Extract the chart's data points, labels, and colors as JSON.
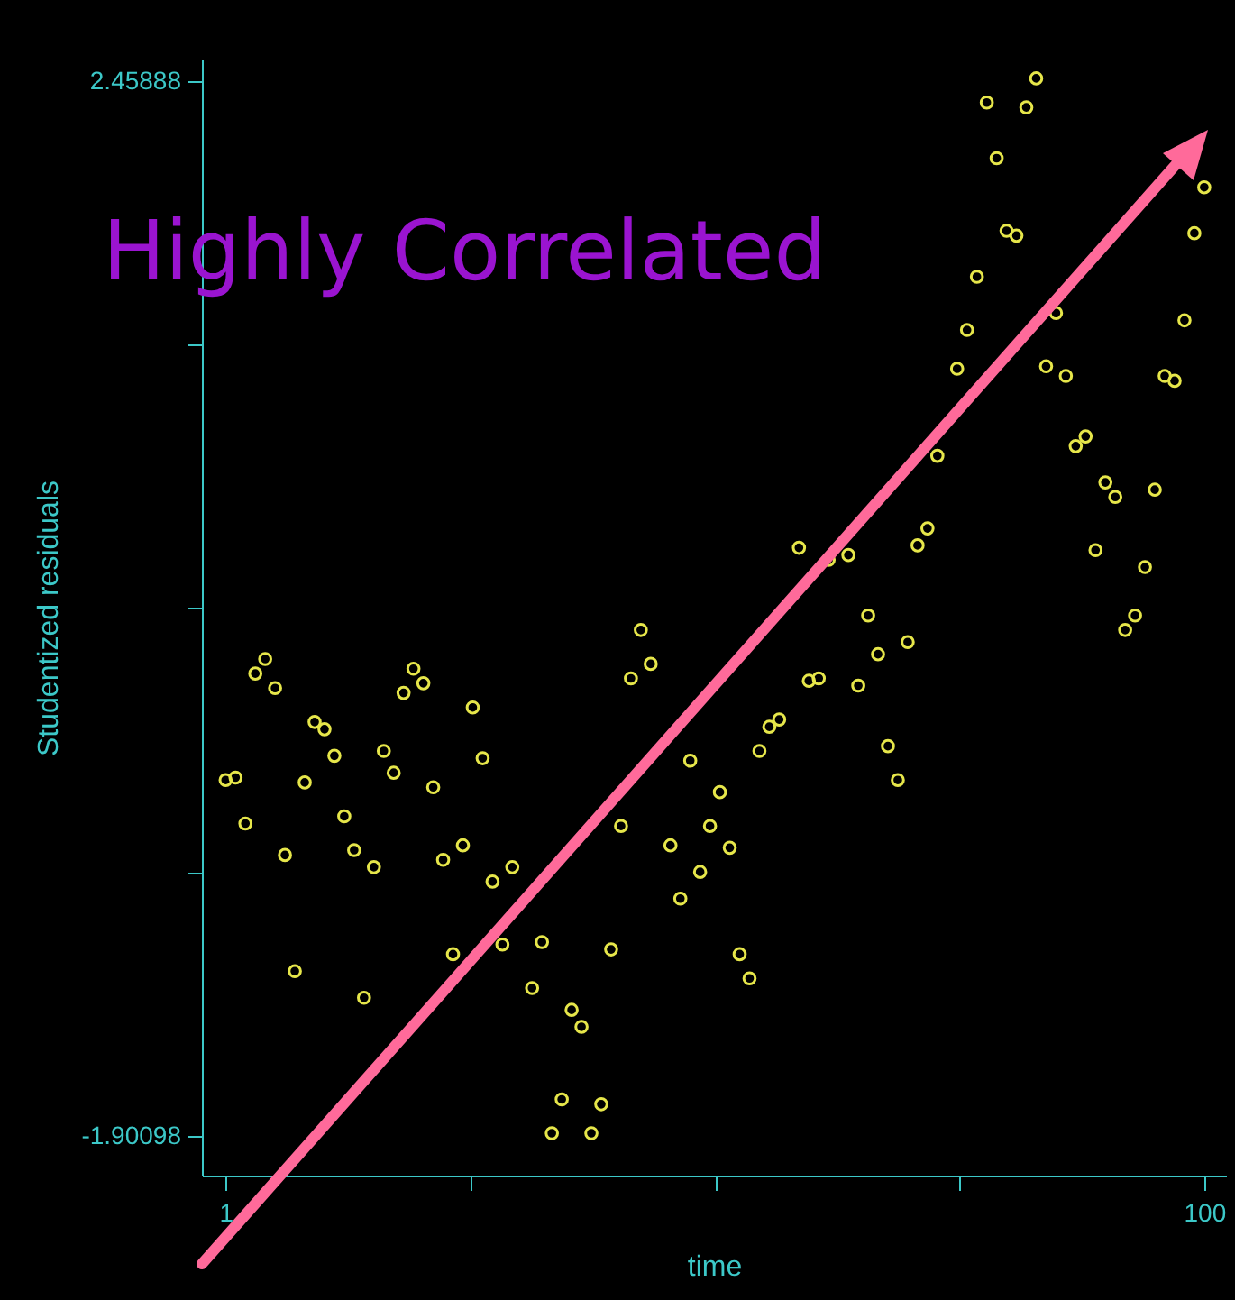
{
  "chart_data": {
    "type": "scatter",
    "xlabel": "time",
    "ylabel": "Studentized residuals",
    "annotations": [
      "Highly Correlated"
    ],
    "xlim": [
      -1.4,
      102.2
    ],
    "xticks": [
      1,
      {
        "value": 25.75,
        "label": null
      },
      {
        "value": 50.5,
        "label": null
      },
      {
        "value": 75.25,
        "label": null
      },
      100
    ],
    "ylim": [
      -2.065,
      2.548
    ],
    "yticks": [
      -1.90098,
      {
        "value": -0.81101,
        "label": null
      },
      {
        "value": 0.27895,
        "label": null
      },
      {
        "value": 1.36892,
        "label": null
      },
      2.45888
    ],
    "grid": false,
    "marker": "circle",
    "series": [
      {
        "color": "#e6e64a",
        "x": [
          1,
          2,
          3,
          4,
          5,
          6,
          7,
          8,
          9,
          10,
          11,
          12,
          13,
          14,
          15,
          16,
          17,
          18,
          19,
          20,
          21,
          22,
          23,
          24,
          25,
          26,
          27,
          28,
          29,
          30,
          32,
          33,
          34,
          35,
          36,
          37,
          38,
          39,
          40,
          41,
          42,
          43,
          44,
          46,
          47,
          48,
          49,
          50,
          51,
          52,
          53,
          54,
          55,
          56,
          57,
          59,
          60,
          61,
          62,
          64,
          65,
          66,
          67,
          68,
          69,
          70,
          71,
          72,
          73,
          75,
          76,
          77,
          78,
          79,
          80,
          81,
          82,
          83,
          84,
          85,
          86,
          87,
          88,
          89,
          90,
          91,
          92,
          93,
          94,
          95,
          96,
          97,
          98,
          99,
          100
        ],
        "values": [
          -0.43,
          -0.42,
          -0.61,
          0.01,
          0.07,
          -0.05,
          -0.74,
          -1.22,
          -0.44,
          -0.19,
          -0.22,
          -0.33,
          -0.58,
          -0.72,
          -1.33,
          -0.79,
          -0.31,
          -0.4,
          -0.07,
          0.03,
          -0.03,
          -0.46,
          -0.76,
          -1.15,
          -0.7,
          -0.13,
          -0.34,
          -0.85,
          -1.11,
          -0.79,
          -1.29,
          -1.1,
          -1.89,
          -1.75,
          -1.38,
          -1.45,
          -1.89,
          -1.77,
          -1.13,
          -0.62,
          -0.01,
          0.19,
          0.05,
          -0.7,
          -0.92,
          -0.35,
          -0.81,
          -0.62,
          -0.48,
          -0.71,
          -1.15,
          -1.25,
          -0.31,
          -0.21,
          -0.18,
          0.53,
          -0.02,
          -0.01,
          0.48,
          0.5,
          -0.04,
          0.25,
          0.09,
          -0.29,
          -0.43,
          0.14,
          0.54,
          0.61,
          0.91,
          1.27,
          1.43,
          1.65,
          2.37,
          2.14,
          1.84,
          1.82,
          2.35,
          2.47,
          1.28,
          1.5,
          1.24,
          0.95,
          0.99,
          0.52,
          0.8,
          0.74,
          0.19,
          0.25,
          0.45,
          0.77,
          1.24,
          1.22,
          1.47,
          1.83,
          2.02
        ]
      }
    ]
  }
}
